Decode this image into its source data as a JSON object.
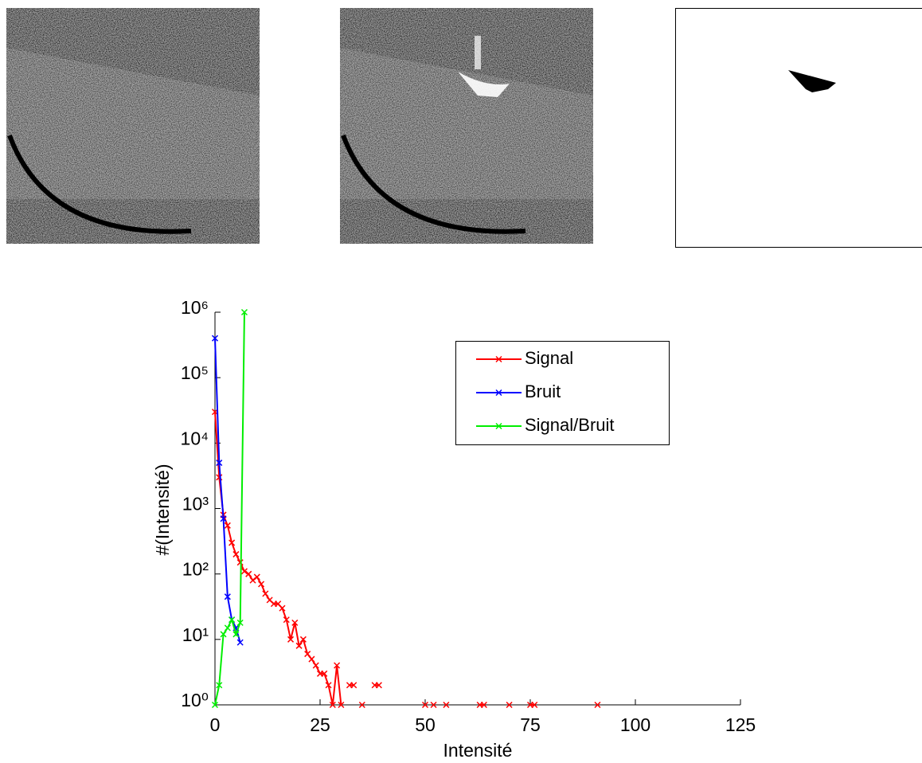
{
  "chart_data": {
    "type": "line",
    "xlabel": "Intensité",
    "ylabel": "#(Intensité)",
    "xlim": [
      0,
      125
    ],
    "xticks": [
      0,
      25,
      50,
      75,
      100,
      125
    ],
    "ylim": [
      1,
      1000000
    ],
    "yscale": "log",
    "yticks": [
      {
        "value": 1,
        "label": "10⁰"
      },
      {
        "value": 10,
        "label": "10¹"
      },
      {
        "value": 100,
        "label": "10²"
      },
      {
        "value": 1000,
        "label": "10³"
      },
      {
        "value": 10000,
        "label": "10⁴"
      },
      {
        "value": 100000,
        "label": "10⁵"
      },
      {
        "value": 1000000,
        "label": "10⁶"
      }
    ],
    "grid": false,
    "legend_position": "northeast",
    "series": [
      {
        "name": "Signal",
        "color": "#ff0000",
        "x": [
          0,
          1,
          2,
          3,
          4,
          5,
          6,
          7,
          8,
          9,
          10,
          11,
          12,
          13,
          14,
          15,
          16,
          17,
          18,
          19,
          20,
          21,
          22,
          23,
          24,
          25,
          26,
          27,
          28,
          29,
          30,
          31,
          32,
          33,
          34,
          35,
          36,
          38,
          39,
          45,
          50,
          51,
          52,
          53,
          55,
          60,
          63,
          64,
          67,
          70,
          72,
          75,
          76,
          85,
          91
        ],
        "values": [
          30000,
          3000,
          800,
          550,
          300,
          200,
          150,
          110,
          100,
          80,
          90,
          70,
          50,
          40,
          35,
          35,
          30,
          20,
          10,
          18,
          8,
          10,
          6,
          5,
          4,
          3,
          3,
          2,
          1,
          4,
          1,
          null,
          2,
          2,
          null,
          1,
          null,
          2,
          2,
          null,
          1,
          null,
          1,
          null,
          1,
          null,
          1,
          1,
          null,
          1,
          null,
          1,
          1,
          null,
          1
        ]
      },
      {
        "name": "Bruit",
        "color": "#0000ff",
        "x": [
          0,
          1,
          2,
          3,
          4,
          5,
          6
        ],
        "values": [
          400000,
          5000,
          700,
          45,
          20,
          15,
          9
        ]
      },
      {
        "name": "Signal/Bruit",
        "color": "#00ee00",
        "x": [
          0,
          1,
          2,
          3,
          4,
          5,
          6,
          7
        ],
        "values": [
          1,
          2,
          12,
          15,
          20,
          12,
          18,
          1000000
        ]
      }
    ]
  }
}
